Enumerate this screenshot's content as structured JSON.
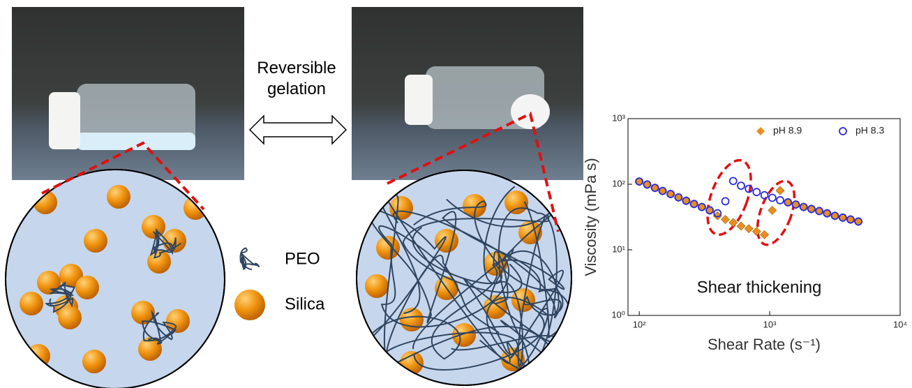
{
  "figure": {
    "arrow_label": "Reversible gelation",
    "legend": [
      "PEO",
      "Silica"
    ]
  },
  "chart_data": {
    "type": "scatter",
    "y_label": "Viscosity (mPa s)",
    "x_label": "Shear Rate (s⁻¹)",
    "annotation": "Shear thickening",
    "log_x": true,
    "log_y": true,
    "legend_position": "upper right",
    "xlim": [
      82,
      10000
    ],
    "ylim": [
      1,
      1000
    ],
    "xticks": [
      {
        "value": 100,
        "label": "10²"
      },
      {
        "value": 1000,
        "label": "10³"
      },
      {
        "value": 10000,
        "label": "10⁴"
      }
    ],
    "yticks": [
      {
        "value": 1,
        "label": "10⁰"
      },
      {
        "value": 10,
        "label": "10¹"
      },
      {
        "value": 100,
        "label": "10²"
      },
      {
        "value": 1000,
        "label": "10³"
      }
    ],
    "x": [
      100,
      115,
      132,
      151,
      174,
      200,
      229,
      263,
      302,
      347,
      398,
      457,
      525,
      603,
      692,
      794,
      912,
      1047,
      1202,
      1380,
      1585,
      1820,
      2089,
      2399,
      2754,
      3162,
      3631,
      4169,
      4786
    ],
    "series": [
      {
        "name": "pH 8.9",
        "color": "#e8901f",
        "marker": "diamond",
        "values": [
          110,
          99,
          88,
          79,
          71,
          63,
          56,
          50,
          45,
          40,
          33,
          29,
          26,
          23,
          21,
          19,
          17,
          40,
          80,
          53,
          49,
          45,
          42,
          39,
          36,
          33,
          31,
          29,
          27
        ]
      },
      {
        "name": "pH 8.3",
        "color": "#2a2ae0",
        "marker": "circle",
        "values": [
          110,
          99,
          88,
          79,
          71,
          63,
          56,
          50,
          45,
          40,
          36,
          55,
          112,
          95,
          85,
          76,
          68,
          62,
          57,
          53,
          49,
          45,
          42,
          39,
          36,
          33,
          31,
          29,
          27
        ]
      }
    ]
  }
}
